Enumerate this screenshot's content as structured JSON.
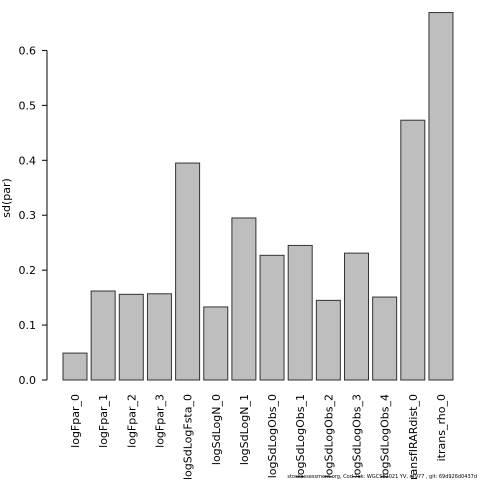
{
  "chart_data": {
    "type": "bar",
    "y_label": "sd(par)",
    "categories": [
      "logFpar_0",
      "logFpar_1",
      "logFpar_2",
      "logFpar_3",
      "logSdLogFsta_0",
      "logSdLogN_0",
      "logSdLogN_1",
      "logSdLogObs_0",
      "logSdLogObs_1",
      "logSdLogObs_2",
      "logSdLogObs_3",
      "logSdLogObs_4",
      "transfIRARdist_0",
      "itrans_rho_0"
    ],
    "values": [
      0.049,
      0.162,
      0.156,
      0.157,
      0.395,
      0.133,
      0.295,
      0.227,
      0.245,
      0.145,
      0.231,
      0.151,
      0.473,
      0.669
    ],
    "color": "#bebebe",
    "ylim": [
      0,
      0.67
    ],
    "yticks": [
      {
        "value": 0,
        "label": "0.0"
      },
      0.1,
      0.2,
      0.3,
      0.4,
      0.5,
      0.6
    ],
    "footnote": "stockassessment.org, Cod 7ek: WGCSE2021 YV, r4977 , git: 69d926d0437d"
  }
}
